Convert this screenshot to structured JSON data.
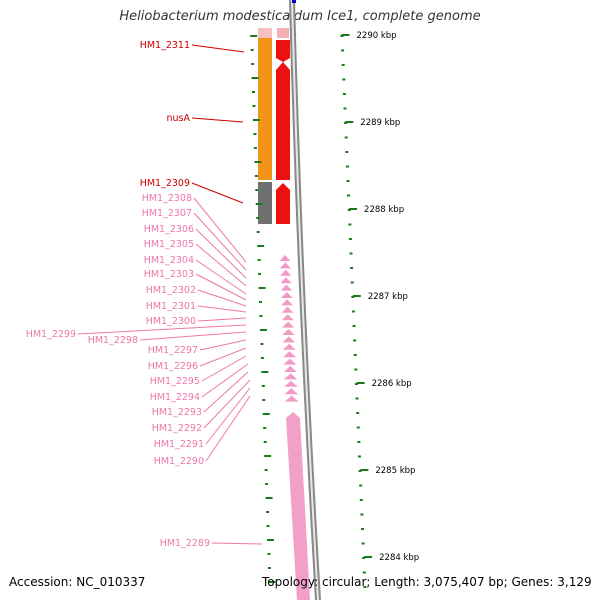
{
  "map": {
    "title": "Heliobacterium modesticaldum Ice1, complete genome",
    "accession": "Accession: NC_010337",
    "topology": "Topology: circular; Length: 3,075,407 bp; Genes: 3,129"
  },
  "colors": {
    "highlight_label": "#cc0000",
    "gene_label": "#ee77aa",
    "tick": "#1a7a1a",
    "backbone": "#999999"
  },
  "scale_labels": [
    "2290 kbp",
    "2289 kbp",
    "2288 kbp",
    "2287 kbp",
    "2286 kbp",
    "2285 kbp",
    "2284 kbp"
  ],
  "gene_labels": [
    {
      "text": "HM1_2311",
      "highlight": true
    },
    {
      "text": "nusA",
      "highlight": true
    },
    {
      "text": "HM1_2309",
      "highlight": true
    },
    {
      "text": "HM1_2308",
      "highlight": false
    },
    {
      "text": "HM1_2307",
      "highlight": false
    },
    {
      "text": "HM1_2306",
      "highlight": false
    },
    {
      "text": "HM1_2305",
      "highlight": false
    },
    {
      "text": "HM1_2304",
      "highlight": false
    },
    {
      "text": "HM1_2303",
      "highlight": false
    },
    {
      "text": "HM1_2302",
      "highlight": false
    },
    {
      "text": "HM1_2301",
      "highlight": false
    },
    {
      "text": "HM1_2300",
      "highlight": false
    },
    {
      "text": "HM1_2299",
      "highlight": false
    },
    {
      "text": "HM1_2298",
      "highlight": false
    },
    {
      "text": "HM1_2297",
      "highlight": false
    },
    {
      "text": "HM1_2296",
      "highlight": false
    },
    {
      "text": "HM1_2295",
      "highlight": false
    },
    {
      "text": "HM1_2294",
      "highlight": false
    },
    {
      "text": "HM1_2293",
      "highlight": false
    },
    {
      "text": "HM1_2292",
      "highlight": false
    },
    {
      "text": "HM1_2291",
      "highlight": false
    },
    {
      "text": "HM1_2290",
      "highlight": false
    },
    {
      "text": "HM1_2289",
      "highlight": false
    }
  ]
}
